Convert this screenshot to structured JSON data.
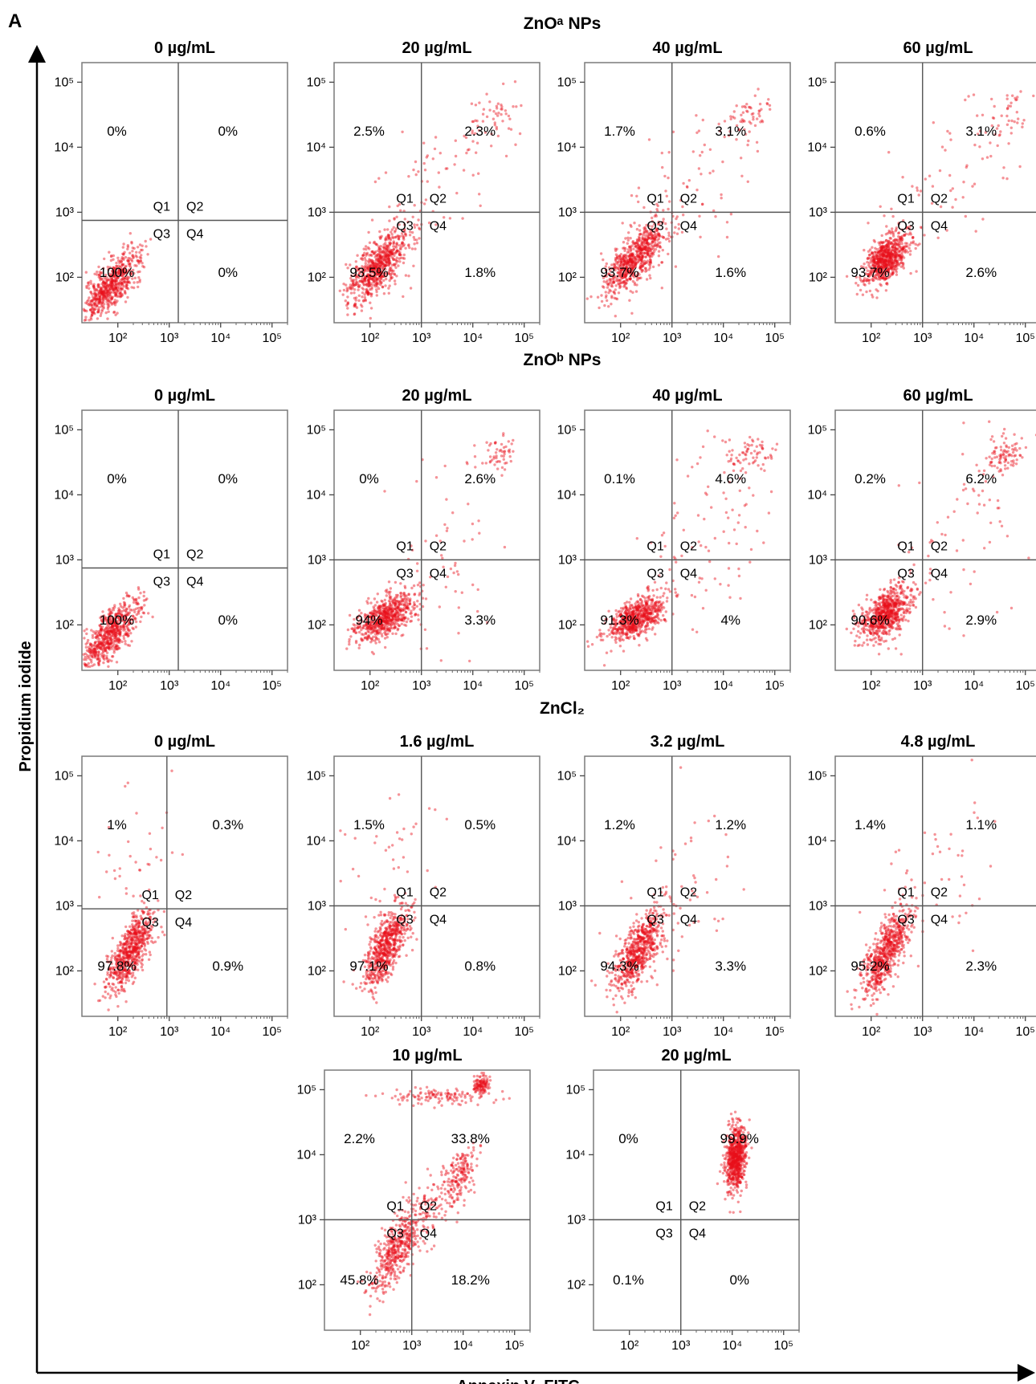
{
  "figure": {
    "panel_letter": "A",
    "ylabel": "Propidium iodide",
    "xlabel": "Annexin V–FITC"
  },
  "groups": [
    {
      "title": "ZnOᵃ NPs"
    },
    {
      "title": "ZnOᵇ NPs"
    },
    {
      "title": "ZnCl₂"
    }
  ],
  "chart_data": {
    "type": "scatter",
    "xscale": "log",
    "yscale": "log",
    "xlabel": "Annexin V–FITC",
    "ylabel": "Propidium iodide",
    "xlim": [
      20,
      200000
    ],
    "ylim": [
      20,
      200000
    ],
    "tick_labels": [
      "10²",
      "10³",
      "10⁴",
      "10⁵"
    ],
    "tick_values": [
      100,
      1000,
      10000,
      100000
    ],
    "quadrant_names": [
      "Q1",
      "Q2",
      "Q3",
      "Q4"
    ],
    "plots": [
      {
        "group": 0,
        "title": "0 µg/mL",
        "gate": [
          1500,
          750
        ],
        "q1": "0%",
        "q2": "0%",
        "q3": "100%",
        "q4": "0%",
        "clusters": [
          {
            "x": 70,
            "y": 70,
            "sx": 0.3,
            "sy": 0.28,
            "rho": 0.75,
            "n": 650
          }
        ]
      },
      {
        "group": 0,
        "title": "20 µg/mL",
        "gate": [
          1000,
          1000
        ],
        "q1": "2.5%",
        "q2": "2.3%",
        "q3": "93.5%",
        "q4": "1.8%",
        "clusters": [
          {
            "x": 150,
            "y": 150,
            "sx": 0.3,
            "sy": 0.28,
            "rho": 0.7,
            "n": 700
          },
          {
            "x": 25000,
            "y": 25000,
            "sx": 0.25,
            "sy": 0.2,
            "rho": 0.4,
            "n": 45
          },
          {
            "x": 1500,
            "y": 2500,
            "sx": 0.7,
            "sy": 0.7,
            "rho": 0.6,
            "n": 90
          }
        ]
      },
      {
        "group": 0,
        "title": "40 µg/mL",
        "gate": [
          1000,
          1000
        ],
        "q1": "1.7%",
        "q2": "3.1%",
        "q3": "93.7%",
        "q4": "1.6%",
        "clusters": [
          {
            "x": 200,
            "y": 200,
            "sx": 0.3,
            "sy": 0.28,
            "rho": 0.7,
            "n": 700
          },
          {
            "x": 30000,
            "y": 30000,
            "sx": 0.22,
            "sy": 0.18,
            "rho": 0.4,
            "n": 55
          },
          {
            "x": 2000,
            "y": 2500,
            "sx": 0.7,
            "sy": 0.7,
            "rho": 0.6,
            "n": 80
          }
        ]
      },
      {
        "group": 0,
        "title": "60 µg/mL",
        "gate": [
          1000,
          1000
        ],
        "q1": "0.6%",
        "q2": "3.1%",
        "q3": "93.7%",
        "q4": "2.6%",
        "clusters": [
          {
            "x": 200,
            "y": 200,
            "sx": 0.22,
            "sy": 0.2,
            "rho": 0.55,
            "n": 700
          },
          {
            "x": 40000,
            "y": 25000,
            "sx": 0.25,
            "sy": 0.2,
            "rho": 0.3,
            "n": 45
          },
          {
            "x": 2000,
            "y": 2000,
            "sx": 0.7,
            "sy": 0.7,
            "rho": 0.5,
            "n": 60
          }
        ]
      },
      {
        "group": 1,
        "title": "0 µg/mL",
        "gate": [
          1500,
          750
        ],
        "q1": "0%",
        "q2": "0%",
        "q3": "100%",
        "q4": "0%",
        "clusters": [
          {
            "x": 70,
            "y": 70,
            "sx": 0.3,
            "sy": 0.28,
            "rho": 0.75,
            "n": 650
          }
        ]
      },
      {
        "group": 1,
        "title": "20 µg/mL",
        "gate": [
          1000,
          1000
        ],
        "q1": "0%",
        "q2": "2.6%",
        "q3": "94%",
        "q4": "3.3%",
        "clusters": [
          {
            "x": 200,
            "y": 130,
            "sx": 0.3,
            "sy": 0.18,
            "rho": 0.6,
            "n": 650
          },
          {
            "x": 30000,
            "y": 40000,
            "sx": 0.2,
            "sy": 0.15,
            "rho": 0.3,
            "n": 55
          },
          {
            "x": 2000,
            "y": 1000,
            "sx": 0.7,
            "sy": 0.8,
            "rho": 0.4,
            "n": 70
          }
        ]
      },
      {
        "group": 1,
        "title": "40 µg/mL",
        "gate": [
          1000,
          1000
        ],
        "q1": "0.1%",
        "q2": "4.6%",
        "q3": "91.3%",
        "q4": "4%",
        "clusters": [
          {
            "x": 200,
            "y": 130,
            "sx": 0.3,
            "sy": 0.18,
            "rho": 0.6,
            "n": 650
          },
          {
            "x": 30000,
            "y": 40000,
            "sx": 0.25,
            "sy": 0.15,
            "rho": 0.3,
            "n": 70
          },
          {
            "x": 5000,
            "y": 2000,
            "sx": 0.6,
            "sy": 0.8,
            "rho": 0.3,
            "n": 90
          }
        ]
      },
      {
        "group": 1,
        "title": "60 µg/mL",
        "gate": [
          1000,
          1000
        ],
        "q1": "0.2%",
        "q2": "6.2%",
        "q3": "90.6%",
        "q4": "2.9%",
        "clusters": [
          {
            "x": 200,
            "y": 150,
            "sx": 0.25,
            "sy": 0.2,
            "rho": 0.5,
            "n": 700
          },
          {
            "x": 40000,
            "y": 40000,
            "sx": 0.2,
            "sy": 0.15,
            "rho": 0.3,
            "n": 90
          },
          {
            "x": 5000,
            "y": 3000,
            "sx": 0.6,
            "sy": 0.8,
            "rho": 0.3,
            "n": 70
          }
        ]
      },
      {
        "group": 2,
        "title": "0 µg/mL",
        "gate": [
          900,
          900
        ],
        "q1": "1%",
        "q2": "0.3%",
        "q3": "97.8%",
        "q4": "0.9%",
        "clusters": [
          {
            "x": 180,
            "y": 200,
            "sx": 0.22,
            "sy": 0.32,
            "rho": 0.7,
            "n": 650
          },
          {
            "x": 300,
            "y": 5000,
            "sx": 0.5,
            "sy": 0.6,
            "rho": 0.2,
            "n": 35
          }
        ]
      },
      {
        "group": 2,
        "title": "1.6 µg/mL",
        "gate": [
          1000,
          1000
        ],
        "q1": "1.5%",
        "q2": "0.5%",
        "q3": "97.1%",
        "q4": "0.8%",
        "clusters": [
          {
            "x": 200,
            "y": 220,
            "sx": 0.22,
            "sy": 0.32,
            "rho": 0.7,
            "n": 650
          },
          {
            "x": 300,
            "y": 5000,
            "sx": 0.5,
            "sy": 0.6,
            "rho": 0.2,
            "n": 40
          }
        ]
      },
      {
        "group": 2,
        "title": "3.2 µg/mL",
        "gate": [
          1000,
          1000
        ],
        "q1": "1.2%",
        "q2": "1.2%",
        "q3": "94.3%",
        "q4": "3.3%",
        "clusters": [
          {
            "x": 220,
            "y": 200,
            "sx": 0.25,
            "sy": 0.32,
            "rho": 0.7,
            "n": 650
          },
          {
            "x": 1500,
            "y": 1500,
            "sx": 0.6,
            "sy": 0.7,
            "rho": 0.4,
            "n": 60
          }
        ]
      },
      {
        "group": 2,
        "title": "4.8 µg/mL",
        "gate": [
          1000,
          1000
        ],
        "q1": "1.4%",
        "q2": "1.1%",
        "q3": "95.2%",
        "q4": "2.3%",
        "clusters": [
          {
            "x": 200,
            "y": 200,
            "sx": 0.22,
            "sy": 0.32,
            "rho": 0.7,
            "n": 650
          },
          {
            "x": 1500,
            "y": 2000,
            "sx": 0.6,
            "sy": 0.7,
            "rho": 0.4,
            "n": 50
          }
        ]
      },
      {
        "group": 2,
        "title": "10 µg/mL",
        "gate": [
          1000,
          1000
        ],
        "q1": "2.2%",
        "q2": "33.8%",
        "q3": "45.8%",
        "q4": "18.2%",
        "clusters": [
          {
            "x": 500,
            "y": 350,
            "sx": 0.25,
            "sy": 0.35,
            "rho": 0.7,
            "n": 450
          },
          {
            "x": 9000,
            "y": 5000,
            "sx": 0.15,
            "sy": 0.2,
            "rho": 0.5,
            "n": 160
          },
          {
            "x": 22000,
            "y": 120000,
            "sx": 0.08,
            "sy": 0.07,
            "rho": 0.2,
            "n": 110
          },
          {
            "x": 4000,
            "y": 80000,
            "sx": 0.5,
            "sy": 0.06,
            "rho": 0,
            "n": 120
          },
          {
            "x": 2500,
            "y": 1500,
            "sx": 0.3,
            "sy": 0.35,
            "rho": 0.6,
            "n": 120
          }
        ]
      },
      {
        "group": 2,
        "title": "20 µg/mL",
        "gate": [
          1000,
          1000
        ],
        "q1": "0%",
        "q2": "99.9%",
        "q3": "0.1%",
        "q4": "0%",
        "clusters": [
          {
            "x": 12000,
            "y": 9000,
            "sx": 0.1,
            "sy": 0.25,
            "rho": 0.2,
            "n": 700
          }
        ]
      }
    ]
  }
}
